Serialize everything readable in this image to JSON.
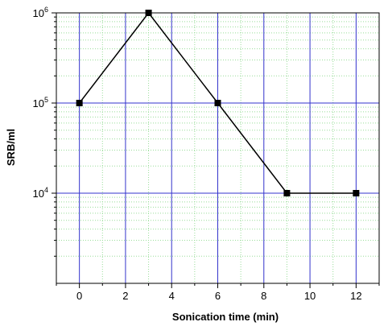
{
  "chart_data": {
    "type": "line",
    "title": "",
    "xlabel": "Sonication time (min)",
    "ylabel": "SRB/ml",
    "xlim": [
      -1,
      13
    ],
    "ylim": [
      1000,
      1000000
    ],
    "y_scale": "log",
    "x_ticks": [
      0,
      2,
      4,
      6,
      8,
      10,
      12
    ],
    "y_tick_labels": [
      {
        "value": 10000,
        "base": "10",
        "exp": "4"
      },
      {
        "value": 100000,
        "base": "10",
        "exp": "5"
      },
      {
        "value": 1000000,
        "base": "10",
        "exp": "6"
      }
    ],
    "grid": true,
    "legend": "none",
    "series": [
      {
        "x": [
          0,
          3,
          6,
          9,
          12
        ],
        "y": [
          100000,
          1000000,
          100000,
          10000,
          10000
        ],
        "marker": "square",
        "color": "#000000"
      }
    ],
    "colors": {
      "major_grid": "#3333cc",
      "minor_grid": "#99dd99",
      "line": "#000000"
    }
  }
}
